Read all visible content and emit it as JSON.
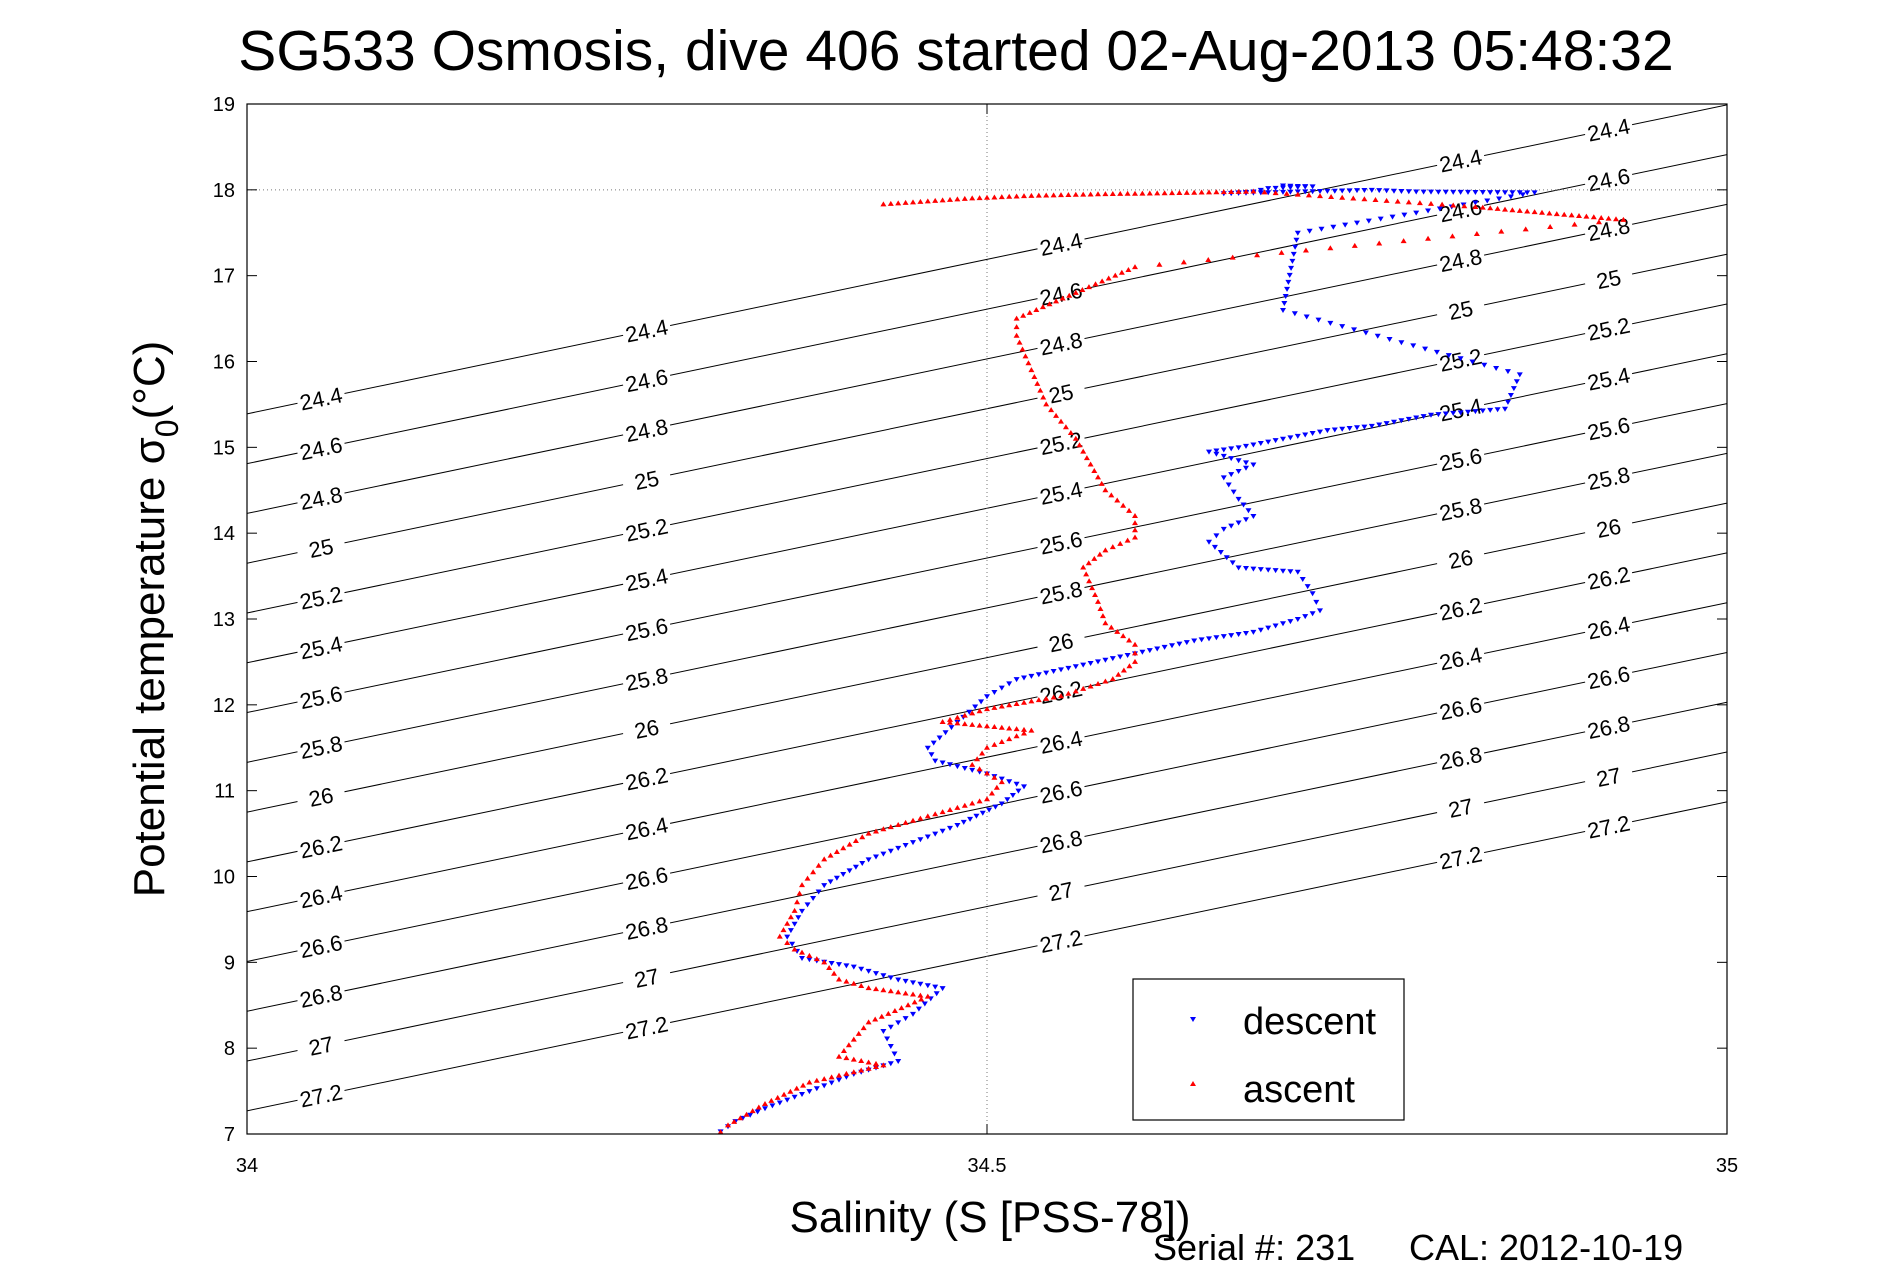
{
  "chart_data": {
    "type": "scatter",
    "title": "SG533 Osmosis, dive 406 started 02-Aug-2013 05:48:32",
    "xlabel": "Salinity (S [PSS-78])",
    "ylabel_main": "Potential temperature σ",
    "ylabel_sub": "0",
    "ylabel_unit": "(°C)",
    "xlim": [
      34,
      35
    ],
    "ylim": [
      7,
      19
    ],
    "x_ticks": [
      34,
      34.5,
      35
    ],
    "x_tick_labels": [
      "34",
      "34.5",
      "35"
    ],
    "y_ticks": [
      7,
      8,
      9,
      10,
      11,
      12,
      13,
      14,
      15,
      16,
      17,
      18,
      19
    ],
    "y_tick_labels": [
      "7",
      "8",
      "9",
      "10",
      "11",
      "12",
      "13",
      "14",
      "15",
      "16",
      "17",
      "18",
      "19"
    ],
    "grid": "center lines at x=34.5 and y=18",
    "legend_position": "bottom-right",
    "density_contours": [
      "24.4",
      "24.6",
      "24.8",
      "25",
      "25.2",
      "25.4",
      "25.6",
      "25.8",
      "26",
      "26.2",
      "26.4",
      "26.6",
      "26.8",
      "27",
      "27.2"
    ],
    "series": [
      {
        "name": "descent",
        "color": "#0000ff",
        "marker": "triangle-down",
        "points": [
          [
            34.7,
            18.05
          ],
          [
            34.72,
            18.04
          ],
          [
            34.69,
            18.02
          ],
          [
            34.68,
            17.98
          ],
          [
            34.66,
            17.96
          ],
          [
            34.76,
            18.0
          ],
          [
            34.79,
            17.98
          ],
          [
            34.87,
            17.97
          ],
          [
            34.71,
            17.5
          ],
          [
            34.7,
            16.6
          ],
          [
            34.86,
            15.85
          ],
          [
            34.85,
            15.45
          ],
          [
            34.8,
            15.38
          ],
          [
            34.76,
            15.25
          ],
          [
            34.73,
            15.2
          ],
          [
            34.7,
            15.1
          ],
          [
            34.67,
            15.0
          ],
          [
            34.65,
            14.95
          ],
          [
            34.68,
            14.8
          ],
          [
            34.66,
            14.65
          ],
          [
            34.67,
            14.4
          ],
          [
            34.68,
            14.2
          ],
          [
            34.66,
            14.05
          ],
          [
            34.65,
            13.9
          ],
          [
            34.67,
            13.6
          ],
          [
            34.71,
            13.55
          ],
          [
            34.72,
            13.3
          ],
          [
            34.725,
            13.1
          ],
          [
            34.71,
            13.0
          ],
          [
            34.68,
            12.85
          ],
          [
            34.64,
            12.75
          ],
          [
            34.6,
            12.6
          ],
          [
            34.56,
            12.45
          ],
          [
            34.52,
            12.3
          ],
          [
            34.5,
            12.1
          ],
          [
            34.48,
            11.8
          ],
          [
            34.46,
            11.5
          ],
          [
            34.465,
            11.35
          ],
          [
            34.5,
            11.2
          ],
          [
            34.525,
            11.05
          ],
          [
            34.51,
            10.85
          ],
          [
            34.48,
            10.6
          ],
          [
            34.45,
            10.4
          ],
          [
            34.42,
            10.2
          ],
          [
            34.39,
            9.9
          ],
          [
            34.375,
            9.6
          ],
          [
            34.365,
            9.3
          ],
          [
            34.375,
            9.05
          ],
          [
            34.41,
            8.95
          ],
          [
            34.44,
            8.8
          ],
          [
            34.47,
            8.7
          ],
          [
            34.45,
            8.4
          ],
          [
            34.43,
            8.2
          ],
          [
            34.44,
            7.85
          ],
          [
            34.41,
            7.7
          ],
          [
            34.38,
            7.5
          ],
          [
            34.35,
            7.3
          ],
          [
            34.33,
            7.15
          ],
          [
            34.32,
            7.03
          ]
        ]
      },
      {
        "name": "ascent",
        "color": "#ff0000",
        "marker": "triangle-up",
        "points": [
          [
            34.43,
            17.83
          ],
          [
            34.49,
            17.9
          ],
          [
            34.53,
            17.93
          ],
          [
            34.58,
            17.95
          ],
          [
            34.62,
            17.96
          ],
          [
            34.65,
            17.97
          ],
          [
            34.68,
            17.98
          ],
          [
            34.83,
            17.8
          ],
          [
            34.93,
            17.65
          ],
          [
            34.6,
            17.1
          ],
          [
            34.52,
            16.5
          ],
          [
            34.52,
            16.3
          ],
          [
            34.53,
            15.9
          ],
          [
            34.54,
            15.5
          ],
          [
            34.56,
            15.1
          ],
          [
            34.57,
            14.8
          ],
          [
            34.58,
            14.5
          ],
          [
            34.6,
            14.2
          ],
          [
            34.6,
            13.95
          ],
          [
            34.58,
            13.8
          ],
          [
            34.565,
            13.6
          ],
          [
            34.575,
            13.2
          ],
          [
            34.58,
            12.95
          ],
          [
            34.6,
            12.7
          ],
          [
            34.6,
            12.5
          ],
          [
            34.585,
            12.3
          ],
          [
            34.55,
            12.1
          ],
          [
            34.5,
            11.95
          ],
          [
            34.47,
            11.8
          ],
          [
            34.53,
            11.7
          ],
          [
            34.5,
            11.5
          ],
          [
            34.49,
            11.3
          ],
          [
            34.51,
            11.1
          ],
          [
            34.5,
            10.9
          ],
          [
            34.46,
            10.7
          ],
          [
            34.42,
            10.5
          ],
          [
            34.39,
            10.2
          ],
          [
            34.375,
            9.9
          ],
          [
            34.37,
            9.6
          ],
          [
            34.36,
            9.3
          ],
          [
            34.37,
            9.15
          ],
          [
            34.39,
            9.0
          ],
          [
            34.4,
            8.8
          ],
          [
            34.42,
            8.7
          ],
          [
            34.46,
            8.6
          ],
          [
            34.42,
            8.3
          ],
          [
            34.41,
            8.1
          ],
          [
            34.4,
            7.9
          ],
          [
            34.43,
            7.8
          ],
          [
            34.38,
            7.6
          ],
          [
            34.35,
            7.35
          ],
          [
            34.325,
            7.1
          ],
          [
            34.32,
            7.02
          ]
        ]
      }
    ]
  },
  "footer": {
    "serial": "Serial #: 231",
    "cal": "CAL: 2012-10-19"
  }
}
